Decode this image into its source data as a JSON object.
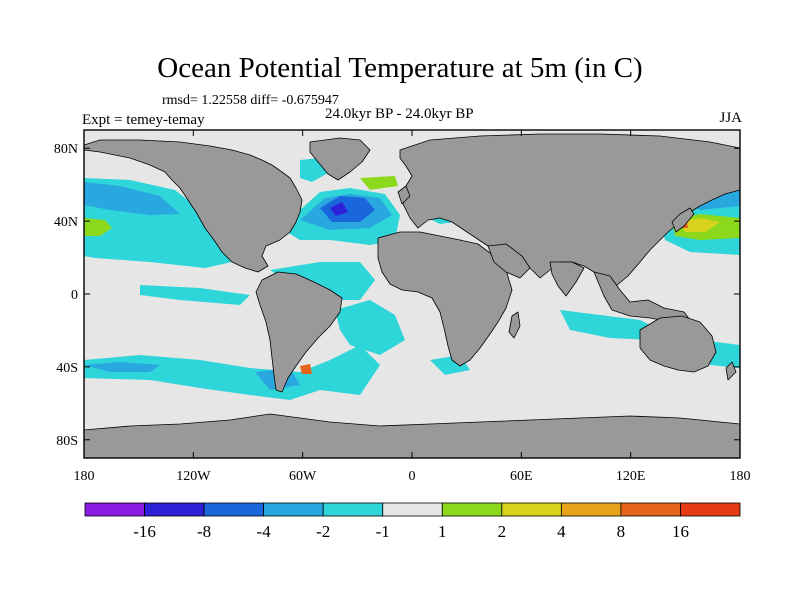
{
  "title": "Ocean Potential Temperature at 5m (in C)",
  "stats": "rmsd= 1.22558 diff= -0.675947",
  "expt": "Expt = temey-temay",
  "period": "24.0kyr BP - 24.0kyr BP",
  "season": "JJA",
  "map": {
    "x_ticks": [
      {
        "lon": -180,
        "label": "180"
      },
      {
        "lon": -120,
        "label": "120W"
      },
      {
        "lon": -60,
        "label": "60W"
      },
      {
        "lon": 0,
        "label": "0"
      },
      {
        "lon": 60,
        "label": "60E"
      },
      {
        "lon": 120,
        "label": "120E"
      },
      {
        "lon": 180,
        "label": "180"
      }
    ],
    "y_ticks": [
      {
        "lat": 80,
        "label": "80N"
      },
      {
        "lat": 40,
        "label": "40N"
      },
      {
        "lat": 0,
        "label": "0"
      },
      {
        "lat": -40,
        "label": "40S"
      },
      {
        "lat": -80,
        "label": "80S"
      }
    ],
    "colors": {
      "ocean_neutral": "#e6e6e6",
      "land": "#999999",
      "coast": "#000000"
    }
  },
  "colorbar": {
    "colors": [
      "#8a1ce6",
      "#2e1fd9",
      "#1a66dd",
      "#29a8e0",
      "#2ed6d9",
      "#e6e6e6",
      "#8cd81c",
      "#d9d21c",
      "#e6a41a",
      "#e6641a",
      "#e63a14"
    ],
    "labels": [
      "-16",
      "-8",
      "-4",
      "-2",
      "-1",
      "1",
      "2",
      "4",
      "8",
      "16"
    ]
  }
}
